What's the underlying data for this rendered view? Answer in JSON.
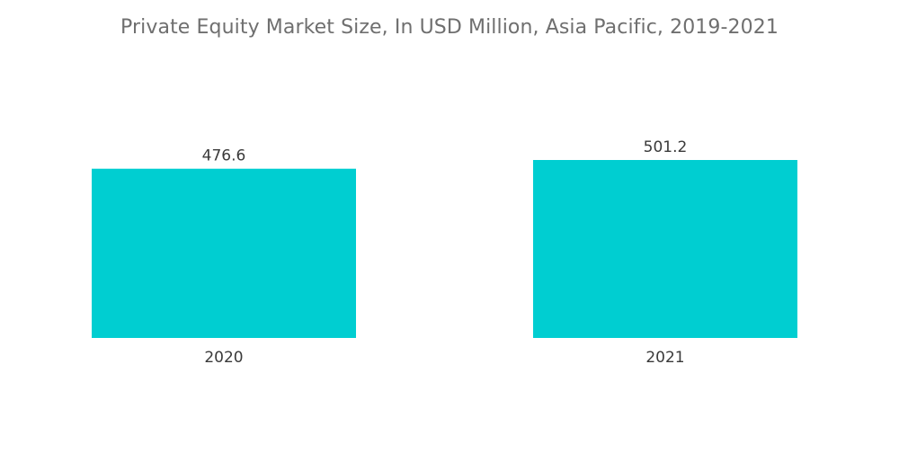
{
  "chart_data": {
    "type": "bar",
    "title": "Private Equity Market Size, In USD Million, Asia Pacific, 2019-2021",
    "categories": [
      "2020",
      "2021"
    ],
    "values": [
      476.6,
      501.2
    ],
    "value_labels": [
      "476.6",
      "501.2"
    ],
    "xlabel": "",
    "ylabel": "",
    "ylim": [
      0,
      501.2
    ],
    "grid": false,
    "legend": "none",
    "bar_color": "#00ced1"
  }
}
